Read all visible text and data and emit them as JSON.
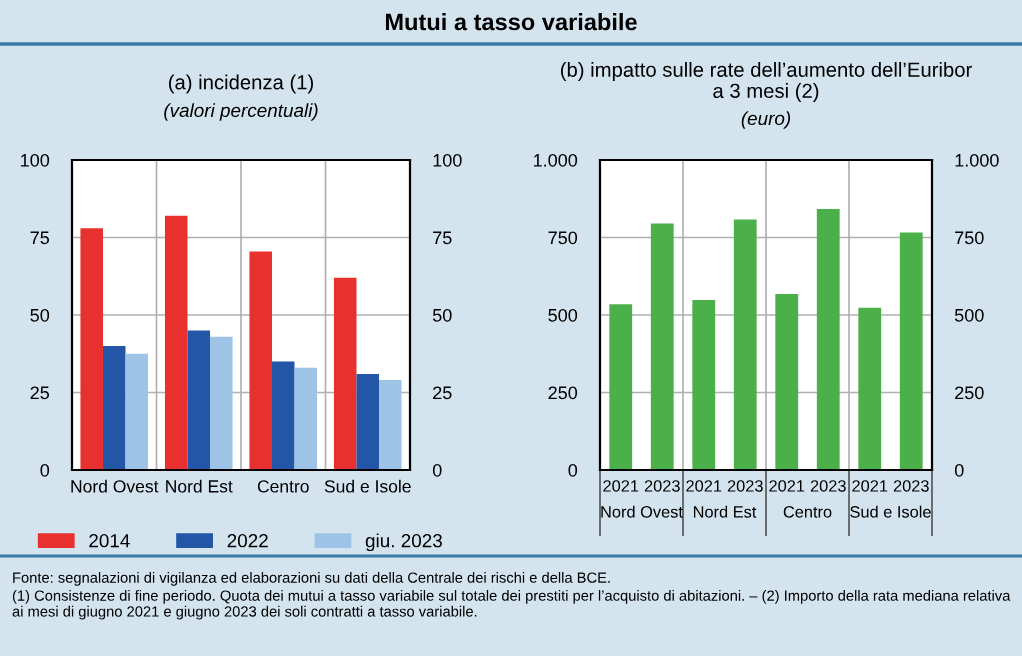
{
  "chart_data": [
    {
      "type": "other",
      "title": "Mutui a tasso variabile",
      "annotations": [
        "Fonte: segnalazioni di vigilanza ed elaborazioni su dati della Centrale dei rischi e della BCE.",
        "(1) Consistenze di fine periodo. Quota dei mutui a tasso variabile sul totale dei prestiti per l’acquisto di abitazioni. – (2) Importo della rata mediana relativa ai mesi di giugno 2021 e giugno 2023 dei soli contratti a tasso variabile."
      ]
    },
    {
      "type": "bar",
      "title": "(a) incidenza (1)",
      "subtitle": "(valori percentuali)",
      "categories": [
        "Nord Ovest",
        "Nord Est",
        "Centro",
        "Sud e Isole"
      ],
      "series": [
        {
          "name": "2014",
          "color": "#e8312f",
          "values": [
            78,
            82,
            70.5,
            62
          ]
        },
        {
          "name": "2022",
          "color": "#2356a6",
          "values": [
            40,
            45,
            35,
            31
          ]
        },
        {
          "name": "giu. 2023",
          "color": "#9dc3e6",
          "values": [
            37.5,
            43,
            33,
            29
          ]
        }
      ],
      "ylim": [
        0,
        100
      ],
      "yticks": [
        0,
        25,
        50,
        75,
        100
      ],
      "y2lim": [
        0,
        100
      ],
      "y2ticks": [
        0,
        25,
        50,
        75,
        100
      ],
      "grid": true,
      "legend": "bottom"
    },
    {
      "type": "bar",
      "title": "(b) impatto sulle rate dell’aumento dell’Euribor a 3 mesi (2)",
      "subtitle": "(euro)",
      "categories": [
        "2021",
        "2023",
        "2021",
        "2023",
        "2021",
        "2023",
        "2021",
        "2023"
      ],
      "series": [
        {
          "color": "#4cb04a",
          "values": [
            535,
            795,
            548,
            808,
            568,
            842,
            523,
            766
          ]
        }
      ],
      "annotations": [
        "Nord Ovest",
        "Nord Est",
        "Centro",
        "Sud e Isole"
      ],
      "ylim": [
        0,
        1000
      ],
      "yticks": [
        0,
        250,
        500,
        750,
        {
          "value": 1000,
          "label": "1.000"
        }
      ],
      "y2lim": [
        0,
        1000
      ],
      "y2ticks": [
        0,
        250,
        500,
        750,
        {
          "value": 1000,
          "label": "1.000"
        }
      ],
      "grid": true
    }
  ]
}
